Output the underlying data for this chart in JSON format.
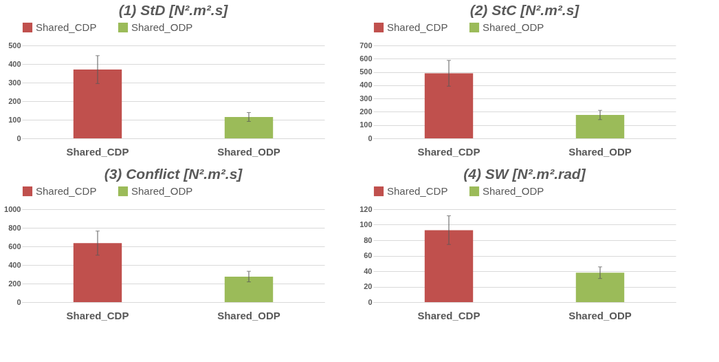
{
  "chart_data": [
    {
      "type": "bar",
      "title": "(1) StD [N².m².s]",
      "categories": [
        "Shared_CDP",
        "Shared_ODP"
      ],
      "stacked": true,
      "series": [
        {
          "name": "Shared_CDP",
          "color": "#c0504d",
          "values": [
            370,
            null
          ],
          "errors": [
            75,
            null
          ]
        },
        {
          "name": "Shared_ODP",
          "color": "#9bbb59",
          "values": [
            null,
            115
          ],
          "errors": [
            null,
            24
          ]
        }
      ],
      "ylim": [
        0,
        500
      ],
      "yticks": [
        0,
        100,
        200,
        300,
        400,
        500
      ],
      "grid": "y",
      "legend": "top"
    },
    {
      "type": "bar",
      "title": "(2) StC [N².m².s]",
      "categories": [
        "Shared_CDP",
        "Shared_ODP"
      ],
      "stacked": true,
      "series": [
        {
          "name": "Shared_CDP",
          "color": "#c0504d",
          "values": [
            490,
            null
          ],
          "errors": [
            97,
            null
          ]
        },
        {
          "name": "Shared_ODP",
          "color": "#9bbb59",
          "values": [
            null,
            176
          ],
          "errors": [
            null,
            35
          ]
        }
      ],
      "ylim": [
        0,
        700
      ],
      "yticks": [
        0,
        100,
        200,
        300,
        400,
        500,
        600,
        700
      ],
      "grid": "y",
      "legend": "top"
    },
    {
      "type": "bar",
      "title": "(3) Conflict [N².m².s]",
      "categories": [
        "Shared_CDP",
        "Shared_ODP"
      ],
      "stacked": true,
      "series": [
        {
          "name": "Shared_CDP",
          "color": "#c0504d",
          "values": [
            635,
            null
          ],
          "errors": [
            130,
            null
          ]
        },
        {
          "name": "Shared_ODP",
          "color": "#9bbb59",
          "values": [
            null,
            275
          ],
          "errors": [
            null,
            57
          ]
        }
      ],
      "ylim": [
        0,
        1000
      ],
      "yticks": [
        0,
        200,
        400,
        600,
        800,
        1000
      ],
      "grid": "y",
      "legend": "top"
    },
    {
      "type": "bar",
      "title": "(4) SW [N².m².rad]",
      "categories": [
        "Shared_CDP",
        "Shared_ODP"
      ],
      "stacked": true,
      "series": [
        {
          "name": "Shared_CDP",
          "color": "#c0504d",
          "values": [
            93,
            null
          ],
          "errors": [
            18.5,
            null
          ]
        },
        {
          "name": "Shared_ODP",
          "color": "#9bbb59",
          "values": [
            null,
            38
          ],
          "errors": [
            null,
            7.5
          ]
        }
      ],
      "ylim": [
        0,
        120
      ],
      "yticks": [
        0,
        20,
        40,
        60,
        80,
        100,
        120
      ],
      "grid": "y",
      "legend": "top"
    }
  ]
}
